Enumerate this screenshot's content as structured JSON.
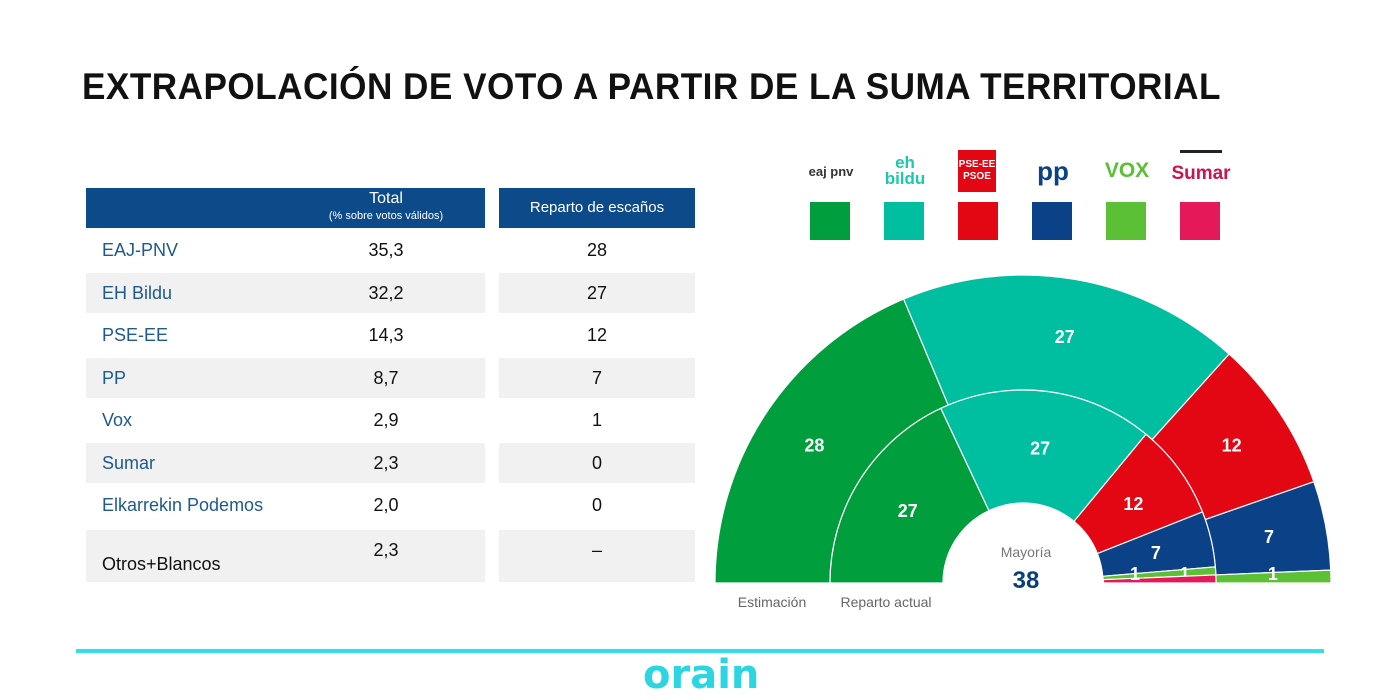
{
  "title": "EXTRAPOLACIÓN DE VOTO A PARTIR DE LA SUMA TERRITORIAL",
  "table": {
    "header_total": "Total",
    "header_total_sub": "(% sobre votos válidos)",
    "header_seats": "Reparto de escaños",
    "rows": [
      {
        "party": "EAJ-PNV",
        "total": "35,3",
        "seats": "28"
      },
      {
        "party": "EH Bildu",
        "total": "32,2",
        "seats": "27"
      },
      {
        "party": "PSE-EE",
        "total": "14,3",
        "seats": "12"
      },
      {
        "party": "PP",
        "total": "8,7",
        "seats": "7"
      },
      {
        "party": "Vox",
        "total": "2,9",
        "seats": "1"
      },
      {
        "party": "Sumar",
        "total": "2,3",
        "seats": "0"
      },
      {
        "party": "Elkarrekin Podemos",
        "total": "2,0",
        "seats": "0"
      },
      {
        "party": "Otros+Blancos",
        "total": "2,3",
        "seats": "–"
      }
    ]
  },
  "legend": [
    {
      "logo": "eaj pnv",
      "color": "#009e3d"
    },
    {
      "logo": "eh bildu",
      "color": "#00bfa0"
    },
    {
      "logo": "PSE-EE PSOE",
      "color": "#e30613"
    },
    {
      "logo": "pp",
      "color": "#0b4287"
    },
    {
      "logo": "VOX",
      "color": "#5bc035"
    },
    {
      "logo": "Sumar",
      "color": "#e5185a"
    }
  ],
  "chart_data": {
    "type": "pie",
    "style": "concentric half-donut (parliament)",
    "total_seats": 75,
    "series": [
      {
        "name": "Estimación",
        "ring": "outer",
        "values": [
          {
            "party": "EAJ-PNV",
            "seats": 28,
            "color": "#009e3d"
          },
          {
            "party": "EH Bildu",
            "seats": 27,
            "color": "#00bfa0"
          },
          {
            "party": "PSE-EE",
            "seats": 12,
            "color": "#e30613"
          },
          {
            "party": "PP",
            "seats": 7,
            "color": "#0b4287"
          },
          {
            "party": "Vox",
            "seats": 1,
            "color": "#5bc035"
          }
        ]
      },
      {
        "name": "Reparto actual",
        "ring": "inner",
        "values": [
          {
            "party": "EAJ-PNV",
            "seats": 27,
            "color": "#009e3d"
          },
          {
            "party": "EH Bildu",
            "seats": 27,
            "color": "#00bfa0"
          },
          {
            "party": "PSE-EE",
            "seats": 12,
            "color": "#e30613"
          },
          {
            "party": "PP",
            "seats": 7,
            "color": "#0b4287"
          },
          {
            "party": "Vox",
            "seats": 1,
            "color": "#5bc035"
          },
          {
            "party": "Sumar",
            "seats": 1,
            "color": "#e5185a"
          }
        ]
      }
    ],
    "majority_label": "Mayoría",
    "majority_value": "38"
  },
  "brand": "orain"
}
